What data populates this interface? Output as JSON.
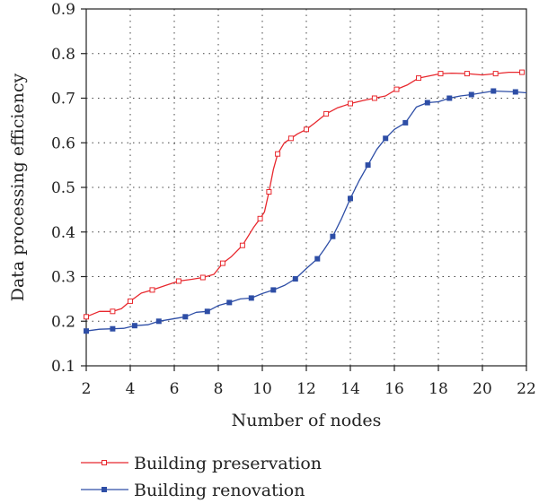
{
  "chart_data": {
    "type": "line",
    "title": "",
    "xlabel": "Number of nodes",
    "ylabel": "Data processing efficiency",
    "xlim": [
      2,
      22
    ],
    "ylim": [
      0.1,
      0.9
    ],
    "x_ticks": [
      "2",
      "4",
      "6",
      "8",
      "10",
      "12",
      "14",
      "16",
      "18",
      "20",
      "22"
    ],
    "y_ticks": [
      "0.1",
      "0.2",
      "0.3",
      "0.4",
      "0.5",
      "0.6",
      "0.7",
      "0.8",
      "0.9"
    ],
    "grid": true,
    "legend_position": "bottom",
    "series": [
      {
        "name": "Building preservation",
        "color": "#e8282e",
        "marker": "hollow-square",
        "x": [
          2.0,
          2.6,
          3.2,
          3.6,
          4.0,
          4.5,
          5.0,
          5.6,
          6.2,
          6.8,
          7.3,
          7.8,
          8.2,
          8.6,
          9.1,
          9.6,
          9.9,
          10.1,
          10.3,
          10.5,
          10.7,
          11.0,
          11.3,
          11.6,
          12.0,
          12.4,
          12.9,
          13.4,
          14.0,
          14.6,
          15.1,
          15.6,
          16.1,
          16.6,
          17.1,
          17.6,
          18.1,
          18.6,
          19.3,
          20.0,
          20.6,
          21.2,
          21.8
        ],
        "y": [
          0.21,
          0.222,
          0.222,
          0.228,
          0.245,
          0.263,
          0.27,
          0.28,
          0.29,
          0.294,
          0.298,
          0.305,
          0.33,
          0.345,
          0.37,
          0.41,
          0.43,
          0.445,
          0.49,
          0.54,
          0.575,
          0.6,
          0.61,
          0.62,
          0.63,
          0.645,
          0.665,
          0.678,
          0.688,
          0.695,
          0.7,
          0.705,
          0.72,
          0.73,
          0.745,
          0.75,
          0.755,
          0.756,
          0.755,
          0.752,
          0.755,
          0.758,
          0.758
        ]
      },
      {
        "name": "Building renovation",
        "color": "#2e4ea6",
        "marker": "filled-square",
        "x": [
          2.0,
          2.6,
          3.2,
          3.7,
          4.2,
          4.8,
          5.3,
          5.9,
          6.5,
          7.0,
          7.5,
          8.0,
          8.5,
          9.0,
          9.5,
          10.0,
          10.5,
          11.0,
          11.5,
          12.0,
          12.5,
          12.8,
          13.2,
          13.6,
          14.0,
          14.4,
          14.8,
          15.2,
          15.6,
          16.0,
          16.5,
          17.0,
          17.5,
          18.0,
          18.5,
          19.0,
          19.5,
          20.0,
          20.5,
          21.0,
          21.5,
          22.0
        ],
        "y": [
          0.178,
          0.182,
          0.183,
          0.184,
          0.19,
          0.192,
          0.2,
          0.205,
          0.21,
          0.22,
          0.222,
          0.235,
          0.242,
          0.25,
          0.252,
          0.262,
          0.27,
          0.28,
          0.295,
          0.318,
          0.34,
          0.36,
          0.39,
          0.43,
          0.475,
          0.515,
          0.55,
          0.585,
          0.61,
          0.63,
          0.645,
          0.68,
          0.69,
          0.692,
          0.7,
          0.705,
          0.708,
          0.712,
          0.716,
          0.715,
          0.714,
          0.712
        ]
      }
    ]
  }
}
